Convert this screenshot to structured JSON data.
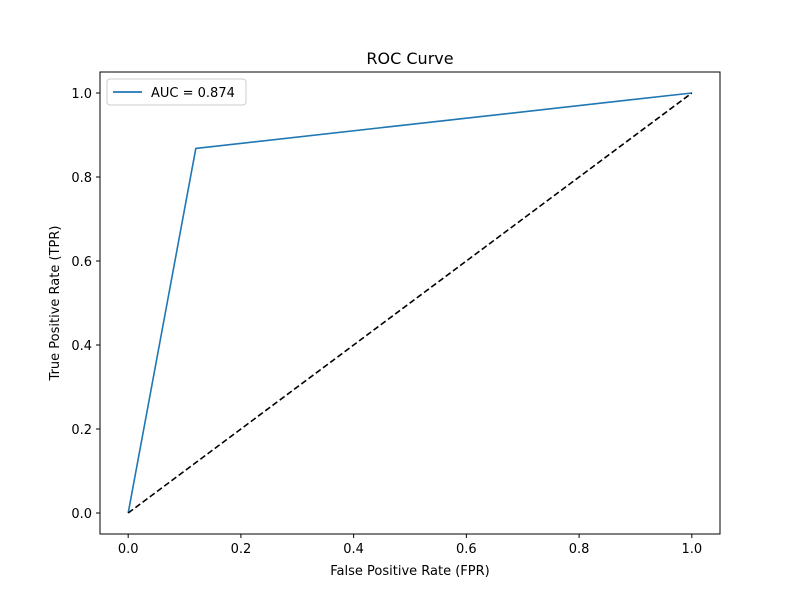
{
  "chart_data": {
    "type": "line",
    "title": "ROC Curve",
    "xlabel": "False Positive Rate (FPR)",
    "ylabel": "True Positive Rate (TPR)",
    "xlim": [
      -0.05,
      1.05
    ],
    "ylim": [
      -0.05,
      1.05
    ],
    "xticks": [
      0.0,
      0.2,
      0.4,
      0.6,
      0.8,
      1.0
    ],
    "yticks": [
      0.0,
      0.2,
      0.4,
      0.6,
      0.8,
      1.0
    ],
    "xtick_labels": [
      "0.0",
      "0.2",
      "0.4",
      "0.6",
      "0.8",
      "1.0"
    ],
    "ytick_labels": [
      "0.0",
      "0.2",
      "0.4",
      "0.6",
      "0.8",
      "1.0"
    ],
    "grid": false,
    "legend_position": "upper-left",
    "series": [
      {
        "name": "AUC = 0.874",
        "color": "#1f77b4",
        "style": "solid",
        "x": [
          0.0,
          0.12,
          1.0
        ],
        "y": [
          0.0,
          0.868,
          1.0
        ]
      },
      {
        "color": "#000000",
        "style": "dashed",
        "x": [
          0.0,
          1.0
        ],
        "y": [
          0.0,
          1.0
        ]
      }
    ]
  }
}
